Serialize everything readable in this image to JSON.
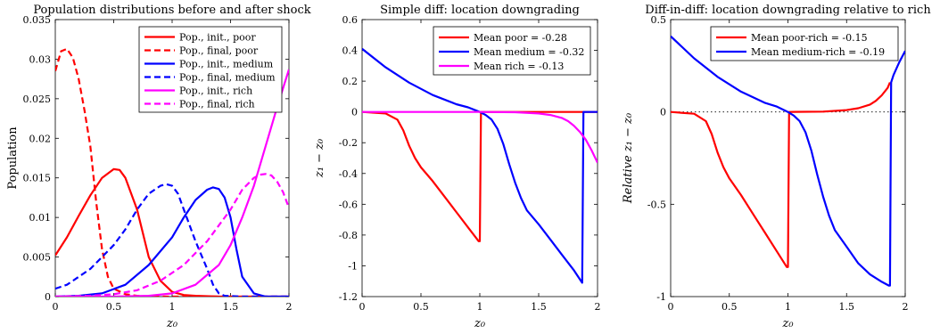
{
  "chart_data": [
    {
      "type": "line",
      "title": "Population distributions before and after shock",
      "xlabel": "z₀",
      "ylabel": "Population",
      "xlim": [
        0,
        2
      ],
      "ylim": [
        0,
        0.035
      ],
      "xticks": [
        "0",
        "0.5",
        "1",
        "1.5",
        "2"
      ],
      "yticks": [
        "0",
        "0.005",
        "0.01",
        "0.015",
        "0.02",
        "0.025",
        "0.03",
        "0.035"
      ],
      "legend_position": "top-right",
      "series": [
        {
          "name": "Pop., init., poor",
          "color": "#ff0000",
          "dash": false,
          "x": [
            0,
            0.1,
            0.2,
            0.3,
            0.4,
            0.5,
            0.55,
            0.6,
            0.7,
            0.8,
            0.9,
            1.0,
            1.1,
            1.2,
            1.4,
            2.0
          ],
          "y": [
            0.0052,
            0.0075,
            0.0102,
            0.0128,
            0.015,
            0.0161,
            0.016,
            0.015,
            0.011,
            0.005,
            0.002,
            0.0006,
            0.0002,
            0.0001,
            0,
            0
          ]
        },
        {
          "name": "Pop., final, poor",
          "color": "#ff0000",
          "dash": true,
          "x": [
            0,
            0.05,
            0.1,
            0.15,
            0.2,
            0.25,
            0.3,
            0.35,
            0.4,
            0.45,
            0.5,
            0.6,
            0.7,
            0.8,
            0.9,
            1.0,
            2.0
          ],
          "y": [
            0.0285,
            0.031,
            0.0313,
            0.0302,
            0.0275,
            0.0235,
            0.019,
            0.012,
            0.006,
            0.0025,
            0.001,
            0.0003,
            0.0001,
            0,
            0,
            0,
            0
          ]
        },
        {
          "name": "Pop., init., medium",
          "color": "#0000ff",
          "dash": false,
          "x": [
            0,
            0.2,
            0.4,
            0.6,
            0.8,
            1.0,
            1.1,
            1.2,
            1.3,
            1.35,
            1.4,
            1.45,
            1.5,
            1.55,
            1.6,
            1.7,
            1.8,
            2.0
          ],
          "y": [
            0,
            0.0001,
            0.0004,
            0.0015,
            0.004,
            0.0075,
            0.01,
            0.0122,
            0.0135,
            0.0138,
            0.0136,
            0.0125,
            0.01,
            0.006,
            0.0025,
            0.0004,
            0,
            0
          ]
        },
        {
          "name": "Pop., final, medium",
          "color": "#0000ff",
          "dash": true,
          "x": [
            0,
            0.1,
            0.2,
            0.3,
            0.4,
            0.5,
            0.6,
            0.7,
            0.8,
            0.9,
            0.95,
            1.0,
            1.05,
            1.1,
            1.2,
            1.3,
            1.35,
            1.4,
            1.45,
            1.6,
            2.0
          ],
          "y": [
            0.001,
            0.0015,
            0.0025,
            0.0035,
            0.005,
            0.0065,
            0.0085,
            0.011,
            0.013,
            0.014,
            0.0142,
            0.014,
            0.013,
            0.011,
            0.007,
            0.0035,
            0.0015,
            0.0004,
            0.0001,
            0,
            0
          ]
        },
        {
          "name": "Pop., init., rich",
          "color": "#ff00ff",
          "dash": false,
          "x": [
            0,
            0.5,
            0.8,
            1.0,
            1.2,
            1.4,
            1.5,
            1.6,
            1.7,
            1.8,
            1.9,
            2.0
          ],
          "y": [
            0,
            0,
            0.0001,
            0.0004,
            0.0015,
            0.004,
            0.0065,
            0.01,
            0.014,
            0.019,
            0.024,
            0.0287
          ]
        },
        {
          "name": "Pop., final, rich",
          "color": "#ff00ff",
          "dash": true,
          "x": [
            0,
            0.3,
            0.5,
            0.7,
            0.9,
            1.1,
            1.3,
            1.5,
            1.6,
            1.7,
            1.75,
            1.8,
            1.85,
            1.9,
            1.95,
            2.0
          ],
          "y": [
            0,
            0.0001,
            0.0003,
            0.0008,
            0.002,
            0.004,
            0.007,
            0.011,
            0.0135,
            0.015,
            0.0154,
            0.0155,
            0.0153,
            0.0145,
            0.0132,
            0.0112
          ]
        }
      ]
    },
    {
      "type": "line",
      "title": "Simple diff: location downgrading",
      "xlabel": "z₀",
      "ylabel": "z₁ − z₀",
      "xlim": [
        0,
        2
      ],
      "ylim": [
        -1.2,
        0.6
      ],
      "xticks": [
        "0",
        "0.5",
        "1",
        "1.5",
        "2"
      ],
      "yticks": [
        "-1.2",
        "-1",
        "-0.8",
        "-0.6",
        "-0.4",
        "-0.2",
        "0",
        "0.2",
        "0.4",
        "0.6"
      ],
      "legend_position": "top-right",
      "series": [
        {
          "name": "Mean poor = -0.28",
          "color": "#ff0000",
          "x": [
            0,
            0.2,
            0.3,
            0.35,
            0.4,
            0.45,
            0.5,
            0.6,
            0.7,
            0.8,
            0.9,
            0.99,
            1.0,
            1.01,
            1.5,
            2.0
          ],
          "y": [
            0,
            -0.01,
            -0.05,
            -0.12,
            -0.22,
            -0.3,
            -0.36,
            -0.45,
            -0.55,
            -0.65,
            -0.75,
            -0.84,
            -0.84,
            0,
            0,
            0
          ]
        },
        {
          "name": "Mean medium = -0.32",
          "color": "#0000ff",
          "x": [
            0,
            0.2,
            0.4,
            0.6,
            0.8,
            0.9,
            1.0,
            1.05,
            1.1,
            1.15,
            1.2,
            1.25,
            1.3,
            1.35,
            1.4,
            1.5,
            1.6,
            1.7,
            1.8,
            1.87,
            1.88,
            2.0
          ],
          "y": [
            0.41,
            0.29,
            0.19,
            0.11,
            0.05,
            0.03,
            0,
            -0.02,
            -0.05,
            -0.11,
            -0.21,
            -0.34,
            -0.46,
            -0.56,
            -0.64,
            -0.73,
            -0.83,
            -0.93,
            -1.03,
            -1.11,
            0,
            0
          ]
        },
        {
          "name": "Mean rich = -0.13",
          "color": "#ff00ff",
          "x": [
            0,
            1.0,
            1.3,
            1.5,
            1.6,
            1.7,
            1.75,
            1.8,
            1.85,
            1.9,
            1.95,
            2.0
          ],
          "y": [
            0,
            0,
            -0.002,
            -0.01,
            -0.02,
            -0.04,
            -0.06,
            -0.09,
            -0.13,
            -0.18,
            -0.25,
            -0.33
          ]
        }
      ]
    },
    {
      "type": "line",
      "title": "Diff-in-diff: location downgrading relative to rich",
      "xlabel": "z₀",
      "ylabel": "Relative z₁ − z₀",
      "xlim": [
        0,
        2
      ],
      "ylim": [
        -1,
        0.5
      ],
      "xticks": [
        "0",
        "0.5",
        "1",
        "1.5",
        "2"
      ],
      "yticks": [
        "-1",
        "-0.5",
        "0",
        "0.5"
      ],
      "legend_position": "top-right",
      "series": [
        {
          "name": "Mean poor-rich = -0.15",
          "color": "#ff0000",
          "x": [
            0,
            0.2,
            0.3,
            0.35,
            0.4,
            0.45,
            0.5,
            0.6,
            0.7,
            0.8,
            0.9,
            0.99,
            1.0,
            1.01,
            1.3,
            1.5,
            1.6,
            1.7,
            1.75,
            1.8,
            1.85,
            1.87
          ],
          "y": [
            0,
            -0.01,
            -0.05,
            -0.12,
            -0.22,
            -0.3,
            -0.36,
            -0.45,
            -0.55,
            -0.65,
            -0.75,
            -0.84,
            -0.84,
            0,
            0.002,
            0.01,
            0.02,
            0.04,
            0.06,
            0.09,
            0.13,
            0.16
          ]
        },
        {
          "name": "Mean medium-rich = -0.19",
          "color": "#0000ff",
          "x": [
            0,
            0.2,
            0.4,
            0.6,
            0.8,
            0.9,
            1.0,
            1.05,
            1.1,
            1.15,
            1.2,
            1.25,
            1.3,
            1.35,
            1.4,
            1.5,
            1.6,
            1.7,
            1.8,
            1.86,
            1.87,
            1.88,
            1.9,
            1.95,
            2.0
          ],
          "y": [
            0.41,
            0.29,
            0.19,
            0.11,
            0.05,
            0.03,
            0,
            -0.02,
            -0.05,
            -0.11,
            -0.21,
            -0.34,
            -0.46,
            -0.56,
            -0.64,
            -0.73,
            -0.82,
            -0.88,
            -0.92,
            -0.94,
            -0.94,
            0.16,
            0.2,
            0.27,
            0.33
          ]
        }
      ],
      "reference_line": {
        "y": 0,
        "style": "dotted"
      }
    }
  ]
}
